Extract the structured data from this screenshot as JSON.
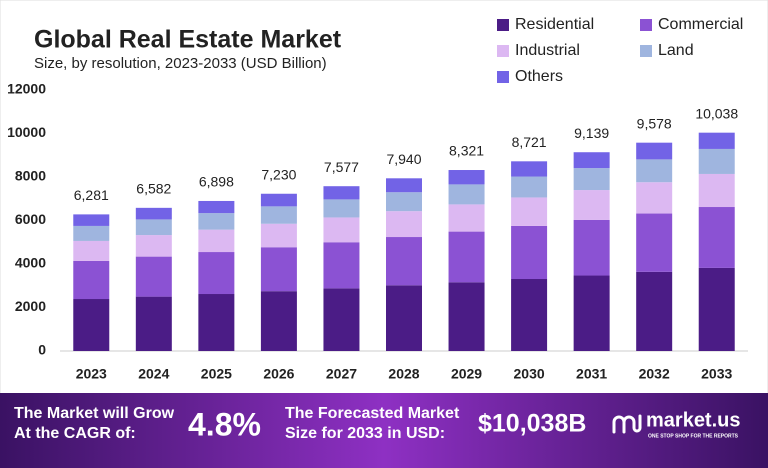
{
  "chart_data": {
    "type": "stacked_bar",
    "title": "Global Real Estate Market",
    "subtitle": "Size, by resolution, 2023-2033 (USD Billion)",
    "categories": [
      "2023",
      "2024",
      "2025",
      "2026",
      "2027",
      "2028",
      "2029",
      "2030",
      "2031",
      "2032",
      "2033"
    ],
    "series": [
      {
        "name": "Residential",
        "color": "#4b1c86",
        "values": [
          2390,
          2500,
          2620,
          2750,
          2880,
          3020,
          3160,
          3310,
          3470,
          3640,
          3820
        ]
      },
      {
        "name": "Commercial",
        "color": "#8b52d3",
        "values": [
          1750,
          1840,
          1930,
          2020,
          2120,
          2220,
          2330,
          2440,
          2560,
          2680,
          2800
        ]
      },
      {
        "name": "Industrial",
        "color": "#dcb8f2",
        "values": [
          920,
          990,
          1030,
          1080,
          1140,
          1190,
          1250,
          1310,
          1370,
          1440,
          1520
        ]
      },
      {
        "name": "Land",
        "color": "#9fb5df",
        "values": [
          690,
          720,
          760,
          800,
          830,
          870,
          920,
          960,
          1010,
          1050,
          1150
        ]
      },
      {
        "name": "Others",
        "color": "#7263e6",
        "values": [
          531,
          532,
          558,
          580,
          607,
          640,
          661,
          701,
          729,
          768,
          748
        ]
      }
    ],
    "totals": [
      6281,
      6582,
      6898,
      7230,
      7577,
      7940,
      8321,
      8721,
      9139,
      9578,
      10038
    ],
    "total_labels": [
      "6,281",
      "6,582",
      "6,898",
      "7,230",
      "7,577",
      "7,940",
      "8,321",
      "8,721",
      "9,139",
      "9,578",
      "10,038"
    ],
    "ylim": [
      0,
      12000
    ],
    "yticks": [
      0,
      2000,
      4000,
      6000,
      8000,
      10000,
      12000
    ],
    "grid": false,
    "legend": "top-right"
  },
  "footer": {
    "cagr_label": [
      "The Market will Grow",
      "At the CAGR of:"
    ],
    "cagr": "4.8%",
    "forecast_label": [
      "The Forecasted Market",
      "Size for 2033 in USD:"
    ],
    "forecast": "$10,038B",
    "brand": "market.us",
    "tagline": "ONE STOP SHOP FOR THE REPORTS"
  }
}
